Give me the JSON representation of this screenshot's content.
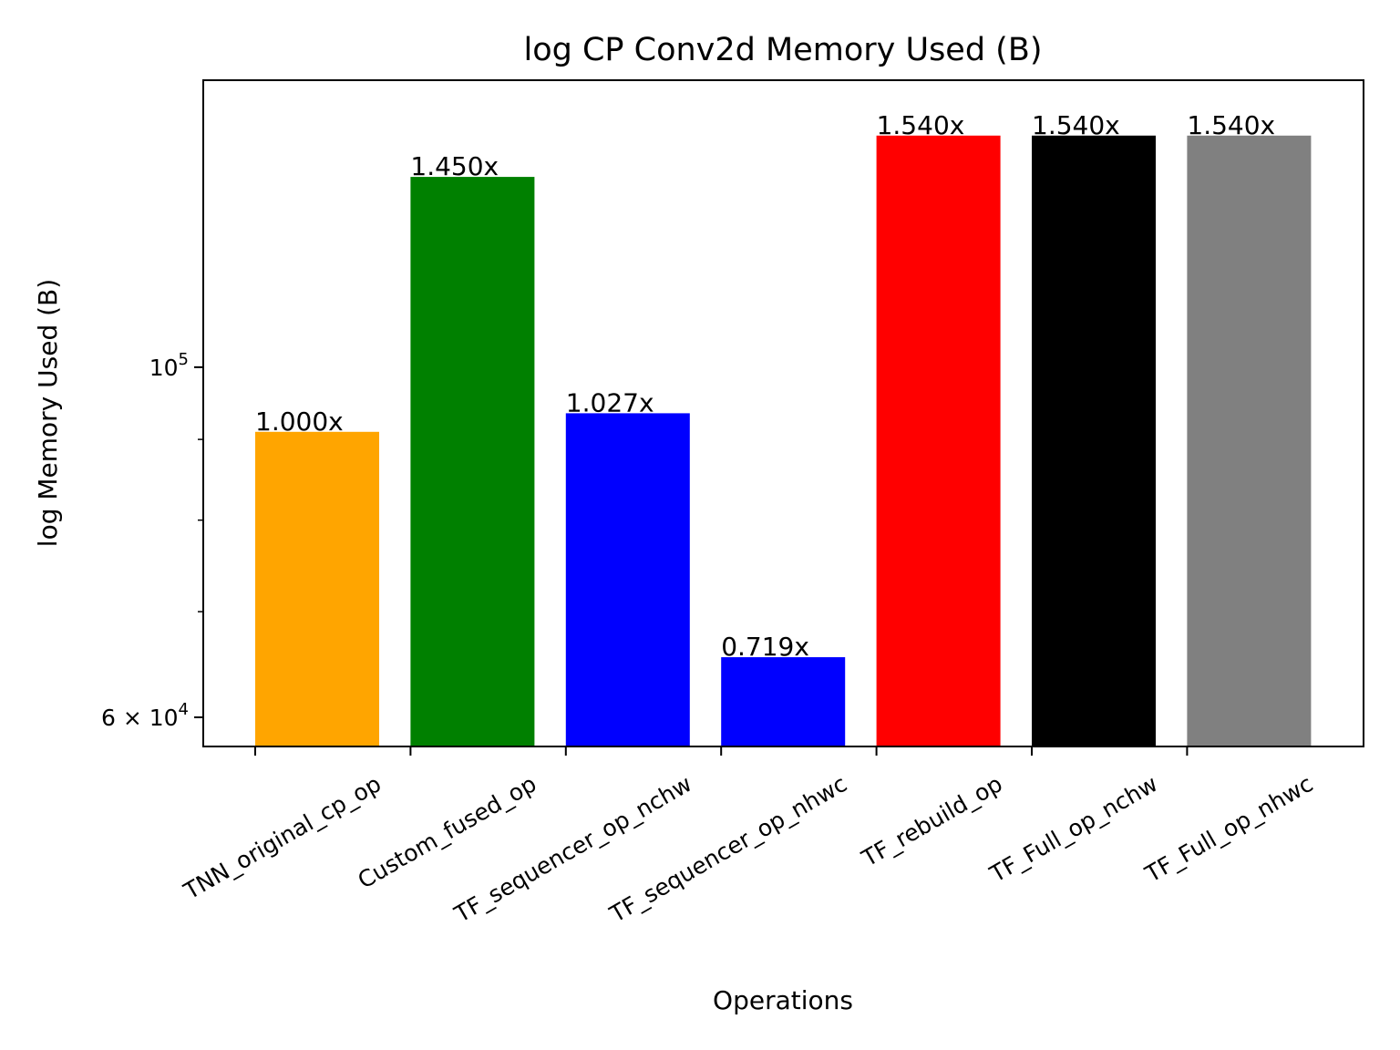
{
  "chart_data": {
    "type": "bar",
    "title": "log CP Conv2d Memory Used (B)",
    "xlabel": "Operations",
    "ylabel": "log Memory Used (B)",
    "yscale": "log",
    "ylim": [
      57500,
      152000
    ],
    "grid": false,
    "categories": [
      "TNN_original_cp_op",
      "Custom_fused_op",
      "TF_sequencer_op_nchw",
      "TF_sequencer_op_nhwc",
      "TF_rebuild_op",
      "TF_Full_op_nchw",
      "TF_Full_op_nhwc"
    ],
    "values": [
      91000,
      132000,
      93500,
      65500,
      140200,
      140200,
      140200
    ],
    "bar_labels": [
      "1.000x",
      "1.450x",
      "1.027x",
      "0.719x",
      "1.540x",
      "1.540x",
      "1.540x"
    ],
    "colors": [
      "#ffa500",
      "#008000",
      "#0000ff",
      "#0000ff",
      "#ff0000",
      "#000000",
      "#808080"
    ],
    "yticks": [
      {
        "value": 100000,
        "mantissa": "10",
        "exponent": "5"
      },
      {
        "value": 60000,
        "mantissa": "6 × 10",
        "exponent": "4"
      }
    ],
    "yminor_ticks": [
      90000,
      80000,
      70000
    ]
  }
}
